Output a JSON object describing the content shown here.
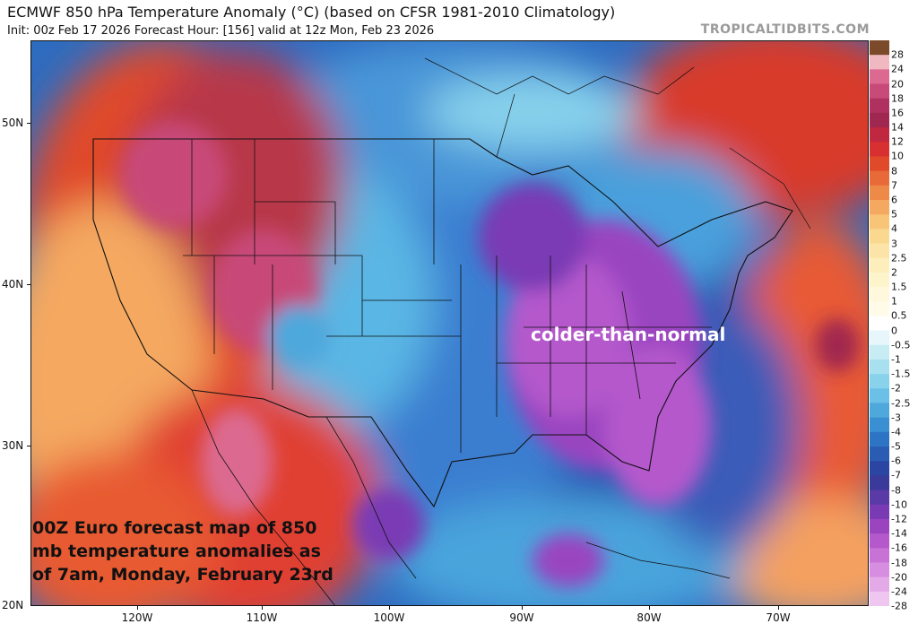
{
  "header": {
    "title": "ECMWF 850 hPa Temperature Anomaly (°C) (based on CFSR 1981-2010 Climatology)",
    "subtitle": "Init: 00z Feb 17 2026   Forecast Hour: [156]   valid at 12z Mon, Feb 23 2026",
    "brand": "TROPICALTIDBITS.COM"
  },
  "map": {
    "lat_labels": [
      "50N",
      "40N",
      "30N",
      "20N"
    ],
    "lon_labels": [
      "120W",
      "110W",
      "100W",
      "90W",
      "80W",
      "70W"
    ],
    "annotation": "colder-than-normal",
    "caption": "00Z Euro forecast map of 850 mb temperature anomalies as of 7am, Monday, February 23rd"
  },
  "colorbar": {
    "labels": [
      "28",
      "24",
      "20",
      "18",
      "16",
      "14",
      "12",
      "10",
      "8",
      "7",
      "6",
      "5",
      "4",
      "3",
      "2.5",
      "2",
      "1.5",
      "1",
      "0.5",
      "0",
      "-0.5",
      "-1",
      "-1.5",
      "-2",
      "-2.5",
      "-3",
      "-4",
      "-5",
      "-6",
      "-7",
      "-8",
      "-10",
      "-12",
      "-14",
      "-16",
      "-18",
      "-20",
      "-24",
      "-28"
    ],
    "colors": [
      "#7a4a2a",
      "#f0b8c0",
      "#dc6a90",
      "#c84a78",
      "#b03060",
      "#a02850",
      "#c02840",
      "#d83030",
      "#e04a2a",
      "#e86a38",
      "#ee8a48",
      "#f4a860",
      "#f8c478",
      "#fad890",
      "#fce4a8",
      "#fdeebc",
      "#fef4cc",
      "#fff8dc",
      "#fffbe8",
      "#ffffff",
      "#e6f6fa",
      "#c8ecf4",
      "#a8e0f0",
      "#88d2ec",
      "#6ac0e6",
      "#4ea8dc",
      "#3a8ed2",
      "#2e74c4",
      "#2a5cb4",
      "#2a46a2",
      "#3a3a9a",
      "#5a3aa6",
      "#7a3ab4",
      "#9a44c0",
      "#b458cc",
      "#c872d6",
      "#d88ee0",
      "#e4aae8",
      "#eec6f0"
    ]
  }
}
